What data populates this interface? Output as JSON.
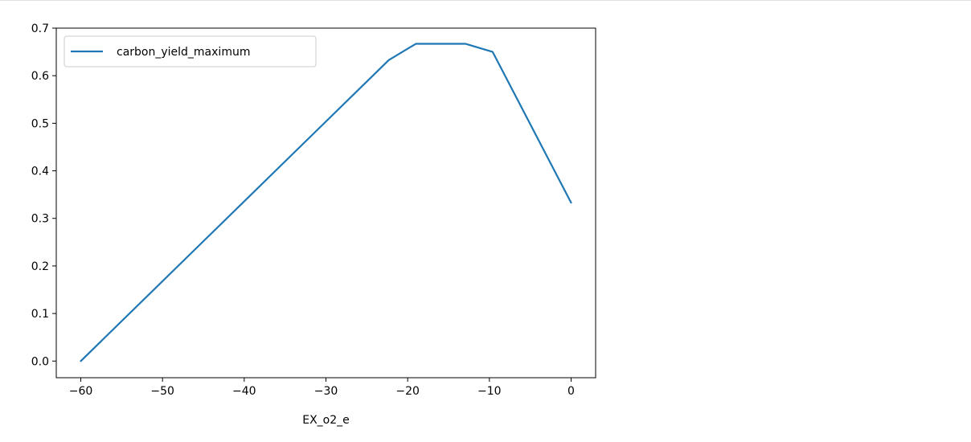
{
  "chart_data": {
    "type": "line",
    "xlabel": "EX_o2_e",
    "ylabel": "",
    "xlim": [
      -63,
      3
    ],
    "ylim": [
      -0.035,
      0.7
    ],
    "xticks": [
      -60,
      -50,
      -40,
      -30,
      -20,
      -10,
      0
    ],
    "xtick_labels": [
      "−60",
      "−50",
      "−40",
      "−30",
      "−20",
      "−10",
      "0"
    ],
    "yticks": [
      0.0,
      0.1,
      0.2,
      0.3,
      0.4,
      0.5,
      0.6,
      0.7
    ],
    "ytick_labels": [
      "0.0",
      "0.1",
      "0.2",
      "0.3",
      "0.4",
      "0.5",
      "0.6",
      "0.7"
    ],
    "grid": false,
    "legend_position": "upper left",
    "series": [
      {
        "name": "carbon_yield_maximum",
        "color": "#1f77b4",
        "x": [
          -60,
          -22.3,
          -19,
          -12.9,
          -9.6,
          0
        ],
        "y": [
          0.0,
          0.633,
          0.667,
          0.667,
          0.65,
          0.333
        ]
      }
    ]
  }
}
